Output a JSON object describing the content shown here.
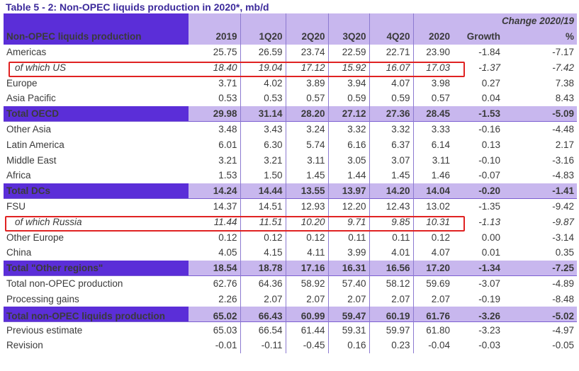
{
  "title": "Table 5 - 2: Non-OPEC liquids production in 2020*, mb/d",
  "header": {
    "change_label": "Change 2020/19",
    "row_label": "Non-OPEC liquids production",
    "columns": [
      "2019",
      "1Q20",
      "2Q20",
      "3Q20",
      "4Q20",
      "2020",
      "Growth",
      "%"
    ]
  },
  "rows": [
    {
      "label": "Americas",
      "values": [
        "25.75",
        "26.59",
        "23.74",
        "22.59",
        "22.71",
        "23.90",
        "-1.84",
        "-7.17"
      ]
    },
    {
      "label": "of which US",
      "values": [
        "18.40",
        "19.04",
        "17.12",
        "15.92",
        "16.07",
        "17.03",
        "-1.37",
        "-7.42"
      ]
    },
    {
      "label": "Europe",
      "values": [
        "3.71",
        "4.02",
        "3.89",
        "3.94",
        "4.07",
        "3.98",
        "0.27",
        "7.38"
      ]
    },
    {
      "label": "Asia Pacific",
      "values": [
        "0.53",
        "0.53",
        "0.57",
        "0.59",
        "0.59",
        "0.57",
        "0.04",
        "8.43"
      ]
    },
    {
      "label": "Total OECD",
      "values": [
        "29.98",
        "31.14",
        "28.20",
        "27.12",
        "27.36",
        "28.45",
        "-1.53",
        "-5.09"
      ]
    },
    {
      "label": "Other Asia",
      "values": [
        "3.48",
        "3.43",
        "3.24",
        "3.32",
        "3.32",
        "3.33",
        "-0.16",
        "-4.48"
      ]
    },
    {
      "label": "Latin America",
      "values": [
        "6.01",
        "6.30",
        "5.74",
        "6.16",
        "6.37",
        "6.14",
        "0.13",
        "2.17"
      ]
    },
    {
      "label": "Middle East",
      "values": [
        "3.21",
        "3.21",
        "3.11",
        "3.05",
        "3.07",
        "3.11",
        "-0.10",
        "-3.16"
      ]
    },
    {
      "label": "Africa",
      "values": [
        "1.53",
        "1.50",
        "1.45",
        "1.44",
        "1.45",
        "1.46",
        "-0.07",
        "-4.83"
      ]
    },
    {
      "label": "Total DCs",
      "values": [
        "14.24",
        "14.44",
        "13.55",
        "13.97",
        "14.20",
        "14.04",
        "-0.20",
        "-1.41"
      ]
    },
    {
      "label": "FSU",
      "values": [
        "14.37",
        "14.51",
        "12.93",
        "12.20",
        "12.43",
        "13.02",
        "-1.35",
        "-9.42"
      ]
    },
    {
      "label": "of which Russia",
      "values": [
        "11.44",
        "11.51",
        "10.20",
        "9.71",
        "9.85",
        "10.31",
        "-1.13",
        "-9.87"
      ]
    },
    {
      "label": "Other Europe",
      "values": [
        "0.12",
        "0.12",
        "0.12",
        "0.11",
        "0.11",
        "0.12",
        "0.00",
        "-3.14"
      ]
    },
    {
      "label": "China",
      "values": [
        "4.05",
        "4.15",
        "4.11",
        "3.99",
        "4.01",
        "4.07",
        "0.01",
        "0.35"
      ]
    },
    {
      "label": "Total \"Other regions\"",
      "values": [
        "18.54",
        "18.78",
        "17.16",
        "16.31",
        "16.56",
        "17.20",
        "-1.34",
        "-7.25"
      ]
    },
    {
      "label": "Total non-OPEC production",
      "values": [
        "62.76",
        "64.36",
        "58.92",
        "57.40",
        "58.12",
        "59.69",
        "-3.07",
        "-4.89"
      ]
    },
    {
      "label": "Processing gains",
      "values": [
        "2.26",
        "2.07",
        "2.07",
        "2.07",
        "2.07",
        "2.07",
        "-0.19",
        "-8.48"
      ]
    },
    {
      "label": "Total non-OPEC liquids production",
      "values": [
        "65.02",
        "66.43",
        "60.99",
        "59.47",
        "60.19",
        "61.76",
        "-3.26",
        "-5.02"
      ]
    },
    {
      "label": "Previous estimate",
      "values": [
        "65.03",
        "66.54",
        "61.44",
        "59.31",
        "59.97",
        "61.80",
        "-3.23",
        "-4.97"
      ]
    },
    {
      "label": "Revision",
      "values": [
        "-0.01",
        "-0.11",
        "-0.45",
        "0.16",
        "0.23",
        "-0.04",
        "-0.03",
        "-0.05"
      ]
    }
  ],
  "colors": {
    "header_dark": "#5b2ed8",
    "header_light": "#c8b7ee",
    "title": "#3c2a9b",
    "highlight_box": "#e02222"
  }
}
